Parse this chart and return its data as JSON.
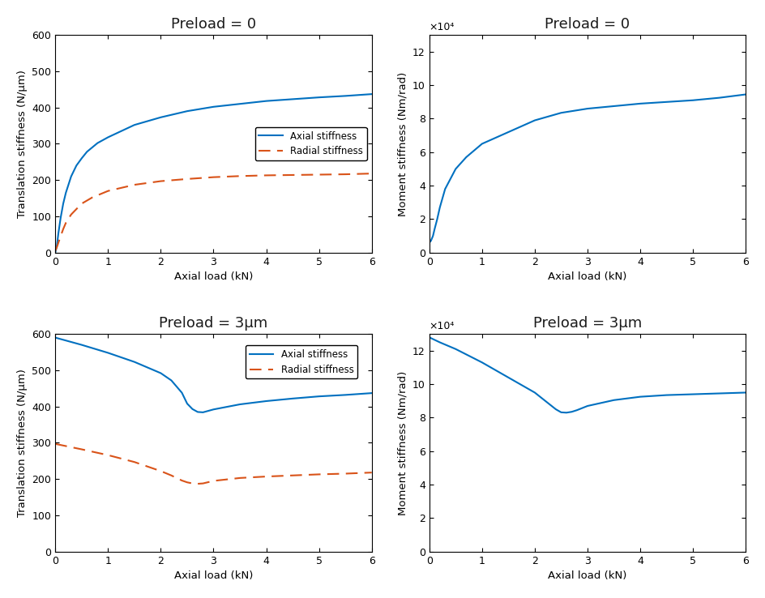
{
  "blue_color": "#0070C0",
  "orange_color": "#D95319",
  "title_fontsize": 13,
  "axis_label_fontsize": 9.5,
  "tick_fontsize": 9,
  "legend_fontsize": 8.5,
  "top_left": {
    "title": "Preload = 0",
    "xlabel": "Axial load (kN)",
    "ylabel": "Translation stiffness (N/μm)",
    "xlim": [
      0,
      6
    ],
    "ylim": [
      0,
      600
    ],
    "yticks": [
      0,
      100,
      200,
      300,
      400,
      500,
      600
    ],
    "xticks": [
      0,
      1,
      2,
      3,
      4,
      5,
      6
    ],
    "axial_x": [
      0.0,
      0.03,
      0.06,
      0.1,
      0.15,
      0.2,
      0.3,
      0.4,
      0.5,
      0.6,
      0.8,
      1.0,
      1.5,
      2.0,
      2.5,
      3.0,
      3.5,
      4.0,
      4.5,
      5.0,
      5.5,
      6.0
    ],
    "axial_y": [
      0.0,
      20,
      55,
      95,
      135,
      165,
      210,
      240,
      260,
      278,
      302,
      318,
      352,
      373,
      390,
      402,
      410,
      418,
      423,
      428,
      432,
      437
    ],
    "radial_x": [
      0.0,
      0.03,
      0.06,
      0.1,
      0.15,
      0.2,
      0.3,
      0.5,
      0.7,
      1.0,
      1.5,
      2.0,
      2.5,
      3.0,
      3.5,
      4.0,
      4.5,
      5.0,
      5.5,
      6.0
    ],
    "radial_y": [
      5,
      15,
      28,
      45,
      65,
      82,
      105,
      135,
      152,
      170,
      187,
      197,
      203,
      208,
      211,
      213,
      214,
      215,
      216,
      218
    ],
    "legend_loc": "center right"
  },
  "top_right": {
    "title": "Preload = 0",
    "xlabel": "Axial load (kN)",
    "ylabel": "Moment stiffness (Nm/rad)",
    "xlim": [
      0,
      6
    ],
    "ylim": [
      0,
      130000
    ],
    "yticks": [
      0,
      20000,
      40000,
      60000,
      80000,
      100000,
      120000
    ],
    "ytick_labels": [
      "0",
      "2",
      "4",
      "6",
      "8",
      "10",
      "12"
    ],
    "xticks": [
      0,
      1,
      2,
      3,
      4,
      5,
      6
    ],
    "scale_label": "×10⁴",
    "moment_x": [
      0.0,
      0.03,
      0.07,
      0.1,
      0.15,
      0.2,
      0.3,
      0.5,
      0.7,
      1.0,
      1.5,
      2.0,
      2.5,
      3.0,
      3.5,
      4.0,
      4.5,
      5.0,
      5.5,
      6.0
    ],
    "moment_y": [
      6000,
      7000,
      10000,
      14000,
      20000,
      27000,
      38000,
      50000,
      57000,
      65000,
      72000,
      79000,
      83500,
      86000,
      87500,
      89000,
      90000,
      91000,
      92500,
      94500
    ]
  },
  "bottom_left": {
    "title": "Preload = 3μm",
    "xlabel": "Axial load (kN)",
    "ylabel": "Translation stiffness (N/μm)",
    "xlim": [
      0,
      6
    ],
    "ylim": [
      0,
      600
    ],
    "yticks": [
      0,
      100,
      200,
      300,
      400,
      500,
      600
    ],
    "xticks": [
      0,
      1,
      2,
      3,
      4,
      5,
      6
    ],
    "axial_x": [
      0.0,
      0.2,
      0.5,
      1.0,
      1.5,
      2.0,
      2.2,
      2.4,
      2.5,
      2.6,
      2.7,
      2.8,
      3.0,
      3.5,
      4.0,
      4.5,
      5.0,
      5.5,
      6.0
    ],
    "axial_y": [
      590,
      582,
      570,
      548,
      523,
      492,
      472,
      438,
      408,
      393,
      385,
      384,
      392,
      406,
      415,
      422,
      428,
      432,
      437
    ],
    "radial_x": [
      0.0,
      0.2,
      0.5,
      1.0,
      1.5,
      2.0,
      2.2,
      2.4,
      2.5,
      2.6,
      2.7,
      2.8,
      3.0,
      3.5,
      4.0,
      4.5,
      5.0,
      5.5,
      6.0
    ],
    "radial_y": [
      297,
      291,
      282,
      266,
      247,
      222,
      210,
      196,
      191,
      188,
      187,
      188,
      195,
      203,
      207,
      210,
      213,
      215,
      218
    ],
    "legend_loc": "upper right"
  },
  "bottom_right": {
    "title": "Preload = 3μm",
    "xlabel": "Axial load (kN)",
    "ylabel": "Moment stiffness (Nm/rad)",
    "xlim": [
      0,
      6
    ],
    "ylim": [
      0,
      130000
    ],
    "yticks": [
      0,
      20000,
      40000,
      60000,
      80000,
      100000,
      120000
    ],
    "ytick_labels": [
      "0",
      "2",
      "4",
      "6",
      "8",
      "10",
      "12"
    ],
    "xticks": [
      0,
      1,
      2,
      3,
      4,
      5,
      6
    ],
    "scale_label": "×10⁴",
    "moment_x": [
      0.0,
      0.2,
      0.5,
      1.0,
      1.5,
      2.0,
      2.2,
      2.4,
      2.5,
      2.6,
      2.7,
      2.8,
      3.0,
      3.5,
      4.0,
      4.5,
      5.0,
      5.5,
      6.0
    ],
    "moment_y": [
      128000,
      125000,
      121000,
      113000,
      104000,
      95000,
      90000,
      85000,
      83200,
      83000,
      83500,
      84500,
      87000,
      90500,
      92500,
      93500,
      94000,
      94500,
      95000
    ]
  }
}
